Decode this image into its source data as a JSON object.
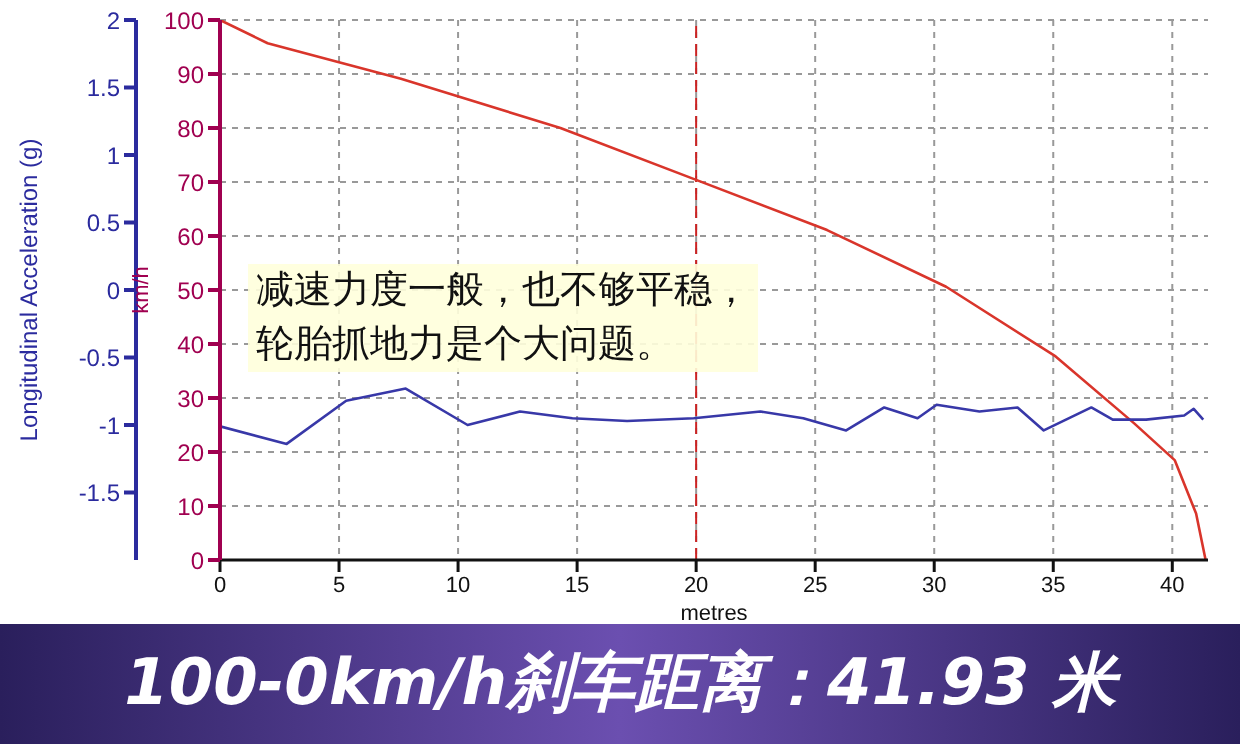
{
  "chart_data": {
    "type": "line",
    "title": "100-0km/h刹车距离：41.93 米",
    "xlabel": "metres",
    "ylabel": "Longitudinal Acceleration (g)",
    "y2label": "km/h",
    "annotations": [
      "减速力度一般，也不够平稳，轮胎抓地力是个大问题。"
    ],
    "xlim": [
      0,
      41.5
    ],
    "xticks": [
      0,
      5,
      10,
      15,
      20,
      25,
      30,
      35,
      40
    ],
    "ylim": [
      -2,
      2
    ],
    "yticks": [
      -1.5,
      -1,
      -0.5,
      0,
      0.5,
      1,
      1.5,
      2
    ],
    "y2lim": [
      0,
      100
    ],
    "y2ticks": [
      0,
      10,
      20,
      30,
      40,
      50,
      60,
      70,
      80,
      90,
      100
    ],
    "grid": true,
    "marker": "none",
    "line_style": "solid",
    "ref_lines": [
      {
        "axis": "x",
        "value": 20,
        "color": "#cc2222",
        "line_style": "dashed"
      }
    ],
    "series": [
      {
        "axis": "y2",
        "color": "#d9352b",
        "x": [
          0,
          2.0,
          7.6,
          14.3,
          20,
          25.5,
          30.5,
          35.1,
          38.4,
          40.1,
          41.0,
          41.4
        ],
        "values": [
          100,
          95.7,
          89.1,
          80,
          70.4,
          61.1,
          50.6,
          37.7,
          25.3,
          18.5,
          8.6,
          0
        ]
      },
      {
        "axis": "y",
        "color": "#3838a8",
        "x": [
          0,
          2.8,
          5.3,
          7.8,
          10.4,
          12.6,
          14.8,
          17.1,
          19.9,
          22.7,
          24.5,
          26.3,
          27.9,
          29.3,
          30.1,
          31.9,
          33.5,
          34.6,
          36.6,
          37.5,
          38.9,
          40.5,
          40.9,
          41.3
        ],
        "values": [
          -1.01,
          -1.14,
          -0.82,
          -0.73,
          -1.0,
          -0.9,
          -0.95,
          -0.97,
          -0.95,
          -0.9,
          -0.95,
          -1.04,
          -0.87,
          -0.95,
          -0.85,
          -0.9,
          -0.87,
          -1.04,
          -0.87,
          -0.96,
          -0.96,
          -0.93,
          -0.88,
          -0.96
        ]
      }
    ]
  }
}
